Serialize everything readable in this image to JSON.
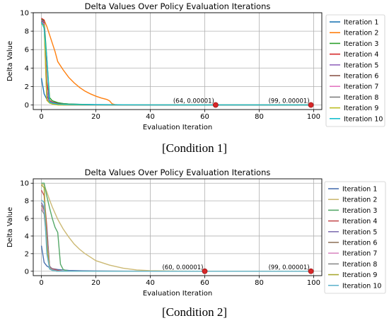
{
  "chart_data": [
    {
      "type": "line",
      "title": "Delta Values Over Policy Evaluation Iterations",
      "xlabel": "Evaluation Iteration",
      "ylabel": "Delta Value",
      "xlim": [
        -3,
        103
      ],
      "ylim": [
        -0.5,
        10
      ],
      "xticks": [
        0,
        20,
        40,
        60,
        80,
        100
      ],
      "yticks": [
        0,
        2,
        4,
        6,
        8,
        10
      ],
      "grid": true,
      "legend_position": "outside-right",
      "series": [
        {
          "name": "Iteration 1",
          "color": "#1f77b4",
          "x": [
            0,
            1,
            2,
            3,
            4,
            6,
            8,
            10,
            15,
            20,
            30,
            40,
            60,
            80,
            99
          ],
          "y": [
            2.9,
            1.2,
            0.6,
            0.4,
            0.3,
            0.2,
            0.15,
            0.1,
            0.06,
            0.04,
            0.02,
            0.01,
            0.003,
            0.001,
            1e-05
          ]
        },
        {
          "name": "Iteration 2",
          "color": "#ff7f0e",
          "x": [
            0,
            1,
            2,
            3,
            4,
            5,
            6,
            8,
            10,
            12,
            14,
            16,
            18,
            20,
            22,
            24,
            25,
            26,
            27,
            28,
            30,
            40
          ],
          "y": [
            9.3,
            9.2,
            8.5,
            7.6,
            6.7,
            5.8,
            4.7,
            3.8,
            3.0,
            2.4,
            1.9,
            1.5,
            1.2,
            0.95,
            0.75,
            0.6,
            0.45,
            0.12,
            0.04,
            0.02,
            0.01,
            1e-05
          ]
        },
        {
          "name": "Iteration 3",
          "color": "#2ca02c",
          "x": [
            0,
            1,
            2,
            3,
            4,
            6,
            8,
            10,
            15,
            20,
            25
          ],
          "y": [
            9.3,
            9.1,
            5.0,
            0.8,
            0.45,
            0.25,
            0.15,
            0.1,
            0.05,
            0.02,
            1e-05
          ]
        },
        {
          "name": "Iteration 4",
          "color": "#d62728",
          "x": [
            0,
            1,
            2,
            3,
            4,
            6,
            8,
            10,
            15
          ],
          "y": [
            9.4,
            9.2,
            2.5,
            0.5,
            0.3,
            0.15,
            0.08,
            0.04,
            1e-05
          ]
        },
        {
          "name": "Iteration 5",
          "color": "#9467bd",
          "x": [
            0,
            1,
            2,
            3,
            4,
            6,
            8,
            10
          ],
          "y": [
            9.2,
            9.0,
            1.5,
            0.4,
            0.25,
            0.1,
            0.05,
            1e-05
          ]
        },
        {
          "name": "Iteration 6",
          "color": "#8c564b",
          "x": [
            0,
            1,
            2,
            3,
            4,
            6,
            8
          ],
          "y": [
            9.1,
            8.9,
            1.0,
            0.35,
            0.2,
            0.08,
            1e-05
          ]
        },
        {
          "name": "Iteration 7",
          "color": "#e377c2",
          "x": [
            0,
            1,
            2,
            3,
            4,
            6
          ],
          "y": [
            9.0,
            8.8,
            0.8,
            0.3,
            0.15,
            1e-05
          ]
        },
        {
          "name": "Iteration 8",
          "color": "#7f7f7f",
          "x": [
            0,
            1,
            2,
            3,
            4,
            6
          ],
          "y": [
            8.9,
            8.7,
            0.6,
            0.25,
            0.12,
            1e-05
          ]
        },
        {
          "name": "Iteration 9",
          "color": "#bcbd22",
          "x": [
            0,
            1,
            2,
            3,
            4,
            6
          ],
          "y": [
            8.8,
            8.6,
            0.5,
            0.2,
            0.1,
            1e-05
          ]
        },
        {
          "name": "Iteration 10",
          "color": "#17becf",
          "x": [
            0,
            1,
            2,
            3,
            4,
            6,
            10,
            20,
            40,
            64
          ],
          "y": [
            9.0,
            8.3,
            5.0,
            0.3,
            0.2,
            0.1,
            0.05,
            0.02,
            0.005,
            1e-05
          ]
        }
      ],
      "markers": [
        {
          "x": 64,
          "y": 1e-05,
          "label": "(64, 0.00001)"
        },
        {
          "x": 99,
          "y": 1e-05,
          "label": "(99, 0.00001)"
        }
      ],
      "caption": "[Condition 1]"
    },
    {
      "type": "line",
      "title": "Delta Values Over Policy Evaluation Iterations",
      "xlabel": "Evaluation Iteration",
      "ylabel": "Delta Value",
      "xlim": [
        -3,
        103
      ],
      "ylim": [
        -0.5,
        10.5
      ],
      "xticks": [
        0,
        20,
        40,
        60,
        80,
        100
      ],
      "yticks": [
        0,
        2,
        4,
        6,
        8,
        10
      ],
      "grid": true,
      "legend_position": "outside-right",
      "series": [
        {
          "name": "Iteration 1",
          "color": "#4c72b0",
          "x": [
            0,
            1,
            2,
            3,
            4,
            6,
            8,
            10,
            15,
            20,
            30,
            40,
            60,
            80,
            99
          ],
          "y": [
            2.9,
            1.0,
            0.6,
            0.4,
            0.3,
            0.2,
            0.15,
            0.1,
            0.06,
            0.04,
            0.02,
            0.01,
            0.003,
            0.001,
            1e-05
          ]
        },
        {
          "name": "Iteration 2",
          "color": "#ccb974",
          "x": [
            0,
            1,
            2,
            3,
            4,
            6,
            8,
            10,
            12,
            14,
            16,
            18,
            20,
            25,
            30,
            35,
            40,
            50,
            60
          ],
          "y": [
            9.9,
            9.8,
            9.0,
            8.1,
            7.3,
            5.9,
            4.8,
            3.9,
            3.1,
            2.5,
            2.0,
            1.6,
            1.2,
            0.7,
            0.35,
            0.15,
            0.07,
            0.02,
            1e-05
          ]
        },
        {
          "name": "Iteration 3",
          "color": "#55a868",
          "x": [
            0,
            1,
            2,
            3,
            4,
            5,
            6,
            7,
            8,
            10
          ],
          "y": [
            10.0,
            10.0,
            8.5,
            7.2,
            6.0,
            5.0,
            4.4,
            0.8,
            0.2,
            1e-05
          ]
        },
        {
          "name": "Iteration 4",
          "color": "#c44e52",
          "x": [
            0,
            1,
            2,
            3,
            4,
            6,
            8
          ],
          "y": [
            9.2,
            8.6,
            5.0,
            0.5,
            0.3,
            0.1,
            1e-05
          ]
        },
        {
          "name": "Iteration 5",
          "color": "#8172b2",
          "x": [
            0,
            1,
            2,
            3,
            4,
            6
          ],
          "y": [
            7.8,
            7.2,
            4.5,
            0.6,
            0.25,
            1e-05
          ]
        },
        {
          "name": "Iteration 6",
          "color": "#937860",
          "x": [
            0,
            1,
            2,
            3,
            4,
            6
          ],
          "y": [
            7.5,
            7.0,
            4.0,
            0.5,
            0.2,
            1e-05
          ]
        },
        {
          "name": "Iteration 7",
          "color": "#da8bc3",
          "x": [
            0,
            1,
            2,
            3,
            4,
            6
          ],
          "y": [
            7.2,
            6.8,
            3.5,
            0.4,
            0.15,
            1e-05
          ]
        },
        {
          "name": "Iteration 8",
          "color": "#8c8c8c",
          "x": [
            0,
            1,
            2,
            3,
            4,
            6
          ],
          "y": [
            7.0,
            6.5,
            3.2,
            0.35,
            0.12,
            1e-05
          ]
        },
        {
          "name": "Iteration 9",
          "color": "#a8a832",
          "x": [
            0,
            1,
            2,
            3,
            4,
            6
          ],
          "y": [
            9.8,
            9.5,
            3.0,
            0.3,
            0.1,
            1e-05
          ]
        },
        {
          "name": "Iteration 10",
          "color": "#64b5cd",
          "x": [
            0,
            1,
            2,
            3,
            4,
            6
          ],
          "y": [
            8.1,
            7.8,
            2.0,
            0.25,
            0.1,
            1e-05
          ]
        }
      ],
      "markers": [
        {
          "x": 60,
          "y": 1e-05,
          "label": "(60, 0.00001)"
        },
        {
          "x": 99,
          "y": 1e-05,
          "label": "(99, 0.00001)"
        }
      ],
      "caption": "[Condition 2]"
    }
  ]
}
